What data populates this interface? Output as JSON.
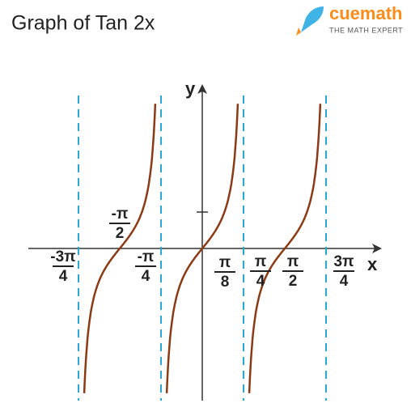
{
  "title": "Graph of Tan 2x",
  "logo": {
    "name": "cuemath",
    "tagline": "THE MATH EXPERT"
  },
  "axes": {
    "x": "x",
    "y": "y"
  },
  "labels": [
    {
      "numerator": "-3π",
      "denominator": "4"
    },
    {
      "numerator": "-π",
      "denominator": "2"
    },
    {
      "numerator": "-π",
      "denominator": "4"
    },
    {
      "numerator": "π",
      "denominator": "8"
    },
    {
      "numerator": "π",
      "denominator": "4"
    },
    {
      "numerator": "π",
      "denominator": "2"
    },
    {
      "numerator": "3π",
      "denominator": "4"
    }
  ]
}
